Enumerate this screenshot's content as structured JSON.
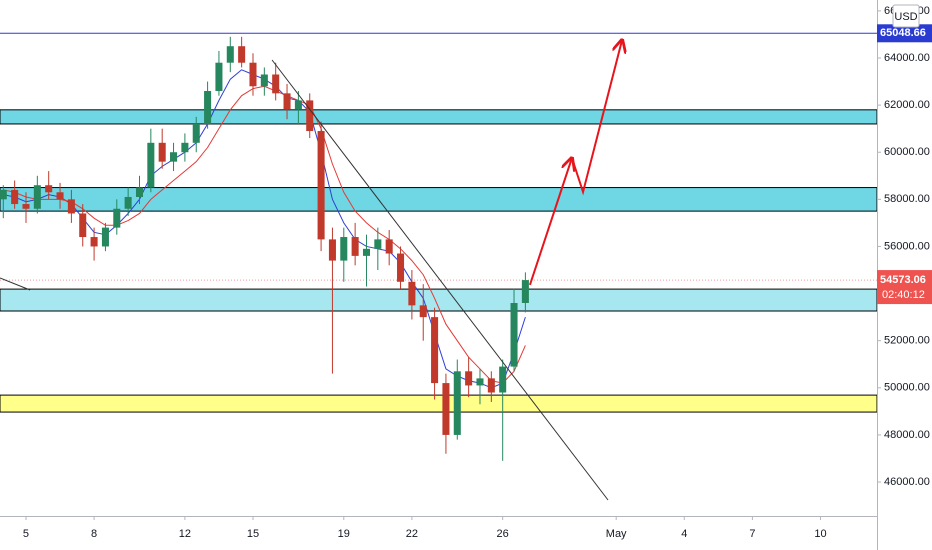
{
  "chart_data": {
    "type": "candlestick",
    "currency": "USD",
    "countdown": "02:40:12",
    "up_color": "#26875f",
    "down_color": "#c0392b",
    "grid": false,
    "xlim": [
      3.855,
      42.49
    ],
    "ylim": [
      44558,
      66462
    ],
    "xticks": [
      5,
      8,
      12,
      15,
      19,
      22,
      26,
      {
        "value": 31,
        "label": "May"
      },
      {
        "value": 34,
        "label": "4"
      },
      {
        "value": 37,
        "label": "7"
      },
      {
        "value": 40,
        "label": "10"
      }
    ],
    "yticks": [
      {
        "value": 46000,
        "label": "46000.00"
      },
      {
        "value": 48000,
        "label": "48000.00"
      },
      {
        "value": 50000,
        "label": "50000.00"
      },
      {
        "value": 52000,
        "label": "52000.00"
      },
      {
        "value": 54000,
        "label": "54000.00"
      },
      {
        "value": 56000,
        "label": "56000.00"
      },
      {
        "value": 58000,
        "label": "58000.00"
      },
      {
        "value": 60000,
        "label": "60000.00"
      },
      {
        "value": 62000,
        "label": "62000.00"
      },
      {
        "value": 64000,
        "label": "64000.00"
      },
      {
        "value": 66000,
        "label": "66000.00"
      }
    ],
    "x": [
      4,
      4.5,
      5,
      5.5,
      6,
      6.5,
      7,
      7.5,
      8,
      8.5,
      9,
      9.5,
      10,
      10.5,
      11,
      11.5,
      12,
      12.5,
      13,
      13.5,
      14,
      14.5,
      15,
      15.5,
      16,
      16.5,
      17,
      17.5,
      18,
      18.5,
      19,
      19.5,
      20,
      20.5,
      21,
      21.5,
      22,
      22.5,
      23,
      23.5,
      24,
      24.5,
      25,
      25.5,
      26,
      26.5,
      27
    ],
    "open": [
      58000,
      58400,
      57800,
      57600,
      58600,
      58300,
      58000,
      57400,
      56400,
      56000,
      56800,
      57600,
      58100,
      58500,
      60400,
      59600,
      60000,
      60400,
      61200,
      62600,
      63800,
      64500,
      63800,
      62800,
      63300,
      62500,
      61800,
      62200,
      60900,
      56300,
      55400,
      56400,
      55600,
      55900,
      56300,
      55700,
      54500,
      53500,
      53000,
      50200,
      48000,
      50700,
      50100,
      50400,
      49800,
      50900,
      53600
    ],
    "high": [
      58600,
      58800,
      58300,
      59000,
      59200,
      58700,
      58400,
      57800,
      56800,
      57000,
      58000,
      58500,
      59000,
      61000,
      61000,
      60400,
      60800,
      61500,
      63000,
      64300,
      64900,
      64900,
      64200,
      63600,
      63800,
      62900,
      62600,
      62500,
      61300,
      56800,
      56800,
      57000,
      56500,
      56800,
      56700,
      56000,
      55000,
      54400,
      53400,
      50600,
      51200,
      51300,
      50800,
      50700,
      51200,
      54200,
      54900
    ],
    "low": [
      57200,
      57600,
      57000,
      57400,
      58000,
      57600,
      57000,
      56000,
      55400,
      55800,
      56500,
      57300,
      57800,
      58300,
      59300,
      59200,
      59600,
      60000,
      61000,
      62400,
      63400,
      63600,
      62400,
      62400,
      62200,
      61400,
      61200,
      60600,
      55800,
      50600,
      54500,
      55200,
      54300,
      55000,
      55200,
      54200,
      52900,
      52000,
      49500,
      47200,
      47800,
      49600,
      49300,
      49400,
      46900,
      50700,
      53200
    ],
    "close": [
      58400,
      57800,
      57600,
      58600,
      58300,
      58000,
      57400,
      56400,
      56000,
      56800,
      57600,
      58100,
      58500,
      60400,
      59600,
      60000,
      60400,
      61200,
      62600,
      63800,
      64500,
      63800,
      62800,
      63300,
      62500,
      61800,
      62200,
      60900,
      56300,
      55400,
      56400,
      55600,
      55900,
      56300,
      55700,
      54500,
      53500,
      53000,
      50200,
      48000,
      50700,
      50100,
      50400,
      49800,
      50900,
      53600,
      54573.06
    ],
    "series": [
      {
        "color": "#2f3fd6",
        "values": [
          58200,
          58100,
          57900,
          58000,
          58200,
          58100,
          57800,
          57200,
          56600,
          56500,
          56900,
          57400,
          58000,
          59000,
          59400,
          59700,
          60000,
          60400,
          61200,
          62200,
          63100,
          63500,
          63300,
          63100,
          62800,
          62300,
          62200,
          61700,
          60000,
          58000,
          57000,
          56300,
          56000,
          55900,
          55800,
          55300,
          54500,
          53800,
          52300,
          50800,
          50500,
          50300,
          50200,
          50000,
          50200,
          51500,
          53000
        ]
      },
      {
        "color": "#e53935",
        "values": [
          58400,
          58300,
          58100,
          58000,
          58000,
          58000,
          57900,
          57600,
          57200,
          56900,
          56900,
          57100,
          57400,
          58000,
          58400,
          58800,
          59200,
          59600,
          60200,
          61000,
          61800,
          62400,
          62700,
          62800,
          62600,
          62400,
          62200,
          62000,
          61000,
          59500,
          58300,
          57500,
          57000,
          56600,
          56300,
          55900,
          55400,
          54800,
          53800,
          52700,
          52000,
          51300,
          50800,
          50300,
          50200,
          50700,
          51800
        ]
      }
    ],
    "zones": [
      {
        "from": 61200,
        "to": 61800,
        "color": "#6fd6e4"
      },
      {
        "from": 57500,
        "to": 58500,
        "color": "#6fd6e4"
      },
      {
        "from": 53260,
        "to": 54190,
        "color": "#a6e7f0"
      },
      {
        "from": 48970,
        "to": 49690,
        "color": "#ffff8a"
      }
    ],
    "levels": [
      {
        "value": 65048.66,
        "label": "65048.66",
        "color": "#2a3bd1"
      }
    ],
    "last_price": {
      "value": 54573.06,
      "label": "54573.06",
      "color": "#ef5350"
    },
    "trend_lines": [
      {
        "x": [
          15.84,
          30.64
        ],
        "y": [
          63915,
          45237
        ],
        "color": "#333333"
      },
      {
        "x": [
          3.855,
          5.18
        ],
        "y": [
          54661,
          54152
        ],
        "color": "#333333"
      }
    ],
    "arrow": {
      "x": [
        27.2,
        29.05,
        29.54,
        31.26
      ],
      "y": [
        54364,
        59755,
        58312,
        64764
      ],
      "color": "#e8141c"
    }
  }
}
